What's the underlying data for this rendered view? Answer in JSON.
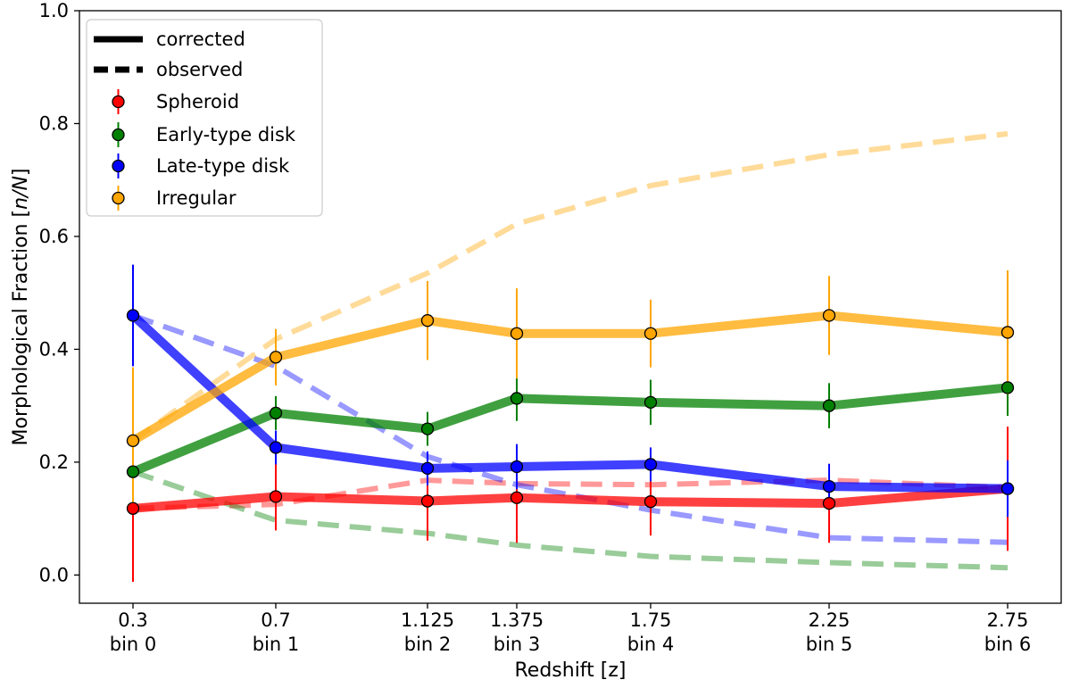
{
  "chart_data": {
    "type": "line",
    "xlabel": "Redshift [z]",
    "ylabel_prefix": "Morphological Fraction [",
    "ylabel_italic": "n/N",
    "ylabel_suffix": "]",
    "ylim": [
      -0.05,
      1.0
    ],
    "xlim": [
      0.15,
      2.9
    ],
    "grid": false,
    "legend_placement": "top-left",
    "x": [
      0.3,
      0.7,
      1.125,
      1.375,
      1.75,
      2.25,
      2.75
    ],
    "x_tick_labels": [
      {
        "value": "0.3",
        "bin": "bin 0"
      },
      {
        "value": "0.7",
        "bin": "bin 1"
      },
      {
        "value": "1.125",
        "bin": "bin 2"
      },
      {
        "value": "1.375",
        "bin": "bin 3"
      },
      {
        "value": "1.75",
        "bin": "bin 4"
      },
      {
        "value": "2.25",
        "bin": "bin 5"
      },
      {
        "value": "2.75",
        "bin": "bin 6"
      }
    ],
    "y_ticks": [
      "0.0",
      "0.2",
      "0.4",
      "0.6",
      "0.8",
      "1.0"
    ],
    "style_legend": [
      {
        "name": "corrected",
        "style": "solid"
      },
      {
        "name": "observed",
        "style": "dashed"
      }
    ],
    "series": [
      {
        "name": "Spheroid",
        "color": "#ff0000",
        "corrected": [
          0.118,
          0.139,
          0.131,
          0.137,
          0.13,
          0.127,
          0.153
        ],
        "errors": [
          0.13,
          0.06,
          0.07,
          0.08,
          0.06,
          0.07,
          0.11
        ],
        "observed": [
          0.118,
          0.125,
          0.168,
          0.162,
          0.16,
          0.168,
          0.155
        ]
      },
      {
        "name": "Early-type disk",
        "color": "#008000",
        "corrected": [
          0.183,
          0.287,
          0.259,
          0.313,
          0.306,
          0.3,
          0.332
        ],
        "errors": [
          0.02,
          0.03,
          0.03,
          0.04,
          0.04,
          0.04,
          0.05
        ],
        "observed": [
          0.183,
          0.097,
          0.074,
          0.053,
          0.033,
          0.022,
          0.013
        ]
      },
      {
        "name": "Late-type disk",
        "color": "#0000ff",
        "corrected": [
          0.46,
          0.226,
          0.189,
          0.192,
          0.196,
          0.157,
          0.153
        ],
        "errors": [
          0.09,
          0.03,
          0.03,
          0.04,
          0.03,
          0.04,
          0.05
        ],
        "observed": [
          0.46,
          0.37,
          0.21,
          0.16,
          0.115,
          0.066,
          0.058
        ]
      },
      {
        "name": "Irregular",
        "color": "#ffa500",
        "corrected": [
          0.238,
          0.386,
          0.451,
          0.428,
          0.428,
          0.46,
          0.43
        ],
        "errors": [
          0.13,
          0.05,
          0.07,
          0.08,
          0.06,
          0.07,
          0.11
        ],
        "observed": [
          0.238,
          0.418,
          0.535,
          0.622,
          0.69,
          0.745,
          0.782
        ]
      }
    ]
  }
}
